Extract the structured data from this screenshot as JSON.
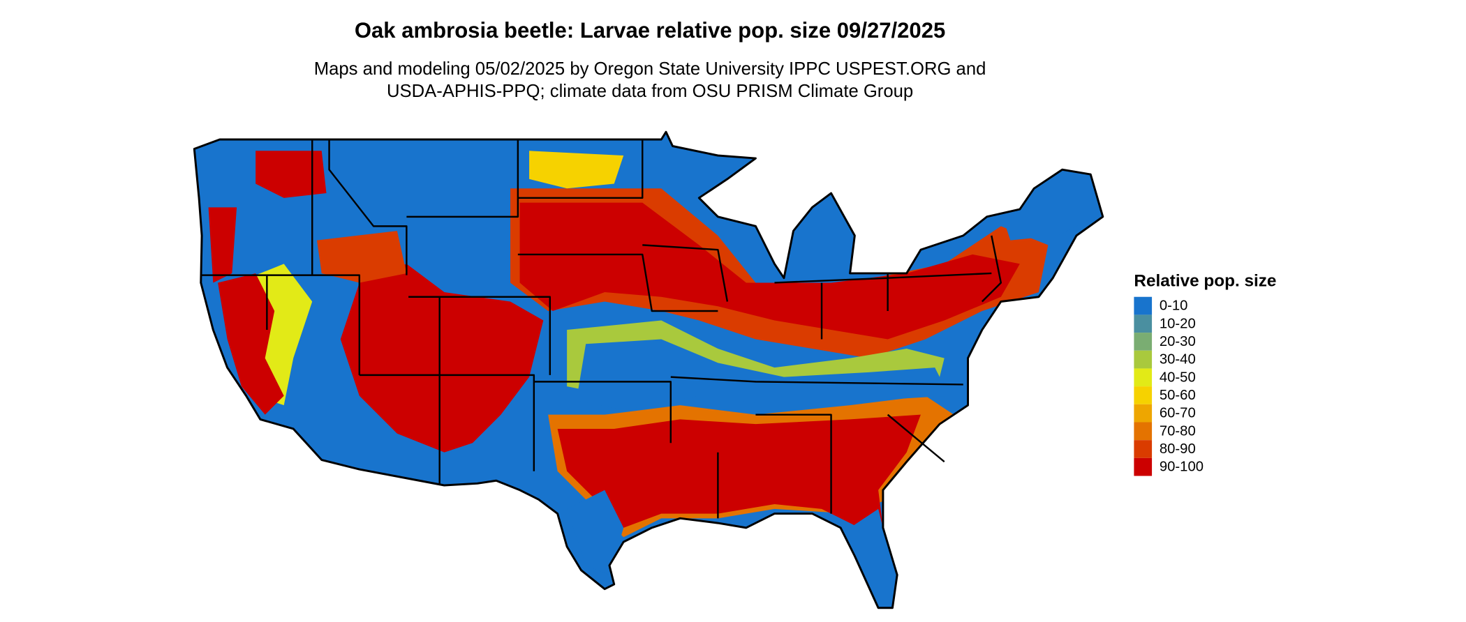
{
  "title": "Oak ambrosia beetle: Larvae relative pop. size 09/27/2025",
  "subtitle": [
    "Maps and modeling 05/02/2025 by Oregon State University IPPC USPEST.ORG and",
    "USDA-APHIS-PPQ; climate data from OSU PRISM Climate Group"
  ],
  "legend": {
    "title": "Relative pop. size",
    "items": [
      {
        "label": "0-10",
        "color": "#1874cd"
      },
      {
        "label": "10-20",
        "color": "#4a8fa0"
      },
      {
        "label": "20-30",
        "color": "#7aad72"
      },
      {
        "label": "30-40",
        "color": "#a9c93d"
      },
      {
        "label": "40-50",
        "color": "#e2ea17"
      },
      {
        "label": "50-60",
        "color": "#f6d200"
      },
      {
        "label": "60-70",
        "color": "#eea600"
      },
      {
        "label": "70-80",
        "color": "#e47300"
      },
      {
        "label": "80-90",
        "color": "#da3c00"
      },
      {
        "label": "90-100",
        "color": "#cc0000"
      }
    ]
  }
}
